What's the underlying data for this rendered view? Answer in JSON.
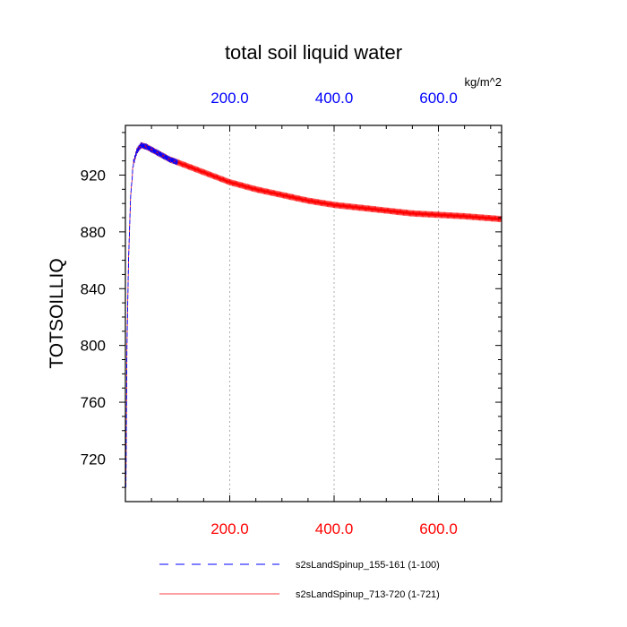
{
  "chart_data": {
    "type": "line",
    "title": "total soil liquid water",
    "units": "kg/m^2",
    "ylabel": "TOTSOILLIQ",
    "xlabel": "",
    "xlim": [
      0,
      721
    ],
    "ylim": [
      690,
      955
    ],
    "grid": "vertical dotted lines at top-axis ticks",
    "top_axis": {
      "tick_values": [
        200,
        400,
        600
      ],
      "tick_labels": [
        "200.0",
        "400.0",
        "600.0"
      ],
      "color": "#0000ff"
    },
    "bottom_axis": {
      "tick_values": [
        200,
        400,
        600
      ],
      "tick_labels": [
        "200.0",
        "400.0",
        "600.0"
      ],
      "color": "#ff0000"
    },
    "y_axis": {
      "tick_values": [
        720,
        760,
        800,
        840,
        880,
        920
      ],
      "tick_labels": [
        "720",
        "760",
        "800",
        "840",
        "880",
        "920"
      ]
    },
    "legend_position": "bottom",
    "series": [
      {
        "name": "s2sLandSpinup_155-161 (1-100)",
        "color": "#0000ff",
        "style": "dashed",
        "x_range": [
          1,
          100
        ],
        "anchors": [
          [
            1,
            700
          ],
          [
            3,
            800
          ],
          [
            6,
            860
          ],
          [
            10,
            905
          ],
          [
            15,
            928
          ],
          [
            22,
            937
          ],
          [
            30,
            941
          ],
          [
            40,
            940
          ],
          [
            55,
            937
          ],
          [
            70,
            934
          ],
          [
            85,
            931
          ],
          [
            100,
            929
          ]
        ],
        "oscillation_amplitude": 2
      },
      {
        "name": "s2sLandSpinup_713-720 (1-721)",
        "color": "#ff0000",
        "style": "solid",
        "x_range": [
          1,
          721
        ],
        "anchors": [
          [
            1,
            700
          ],
          [
            3,
            800
          ],
          [
            6,
            860
          ],
          [
            10,
            905
          ],
          [
            15,
            928
          ],
          [
            22,
            937
          ],
          [
            30,
            941
          ],
          [
            40,
            940
          ],
          [
            55,
            937
          ],
          [
            70,
            934
          ],
          [
            85,
            931
          ],
          [
            100,
            929
          ],
          [
            150,
            922
          ],
          [
            200,
            915
          ],
          [
            250,
            910
          ],
          [
            300,
            906
          ],
          [
            350,
            902
          ],
          [
            400,
            899
          ],
          [
            450,
            897
          ],
          [
            500,
            895
          ],
          [
            550,
            893
          ],
          [
            600,
            892
          ],
          [
            650,
            891
          ],
          [
            721,
            889
          ]
        ],
        "oscillation_amplitude": 2.2
      }
    ]
  }
}
